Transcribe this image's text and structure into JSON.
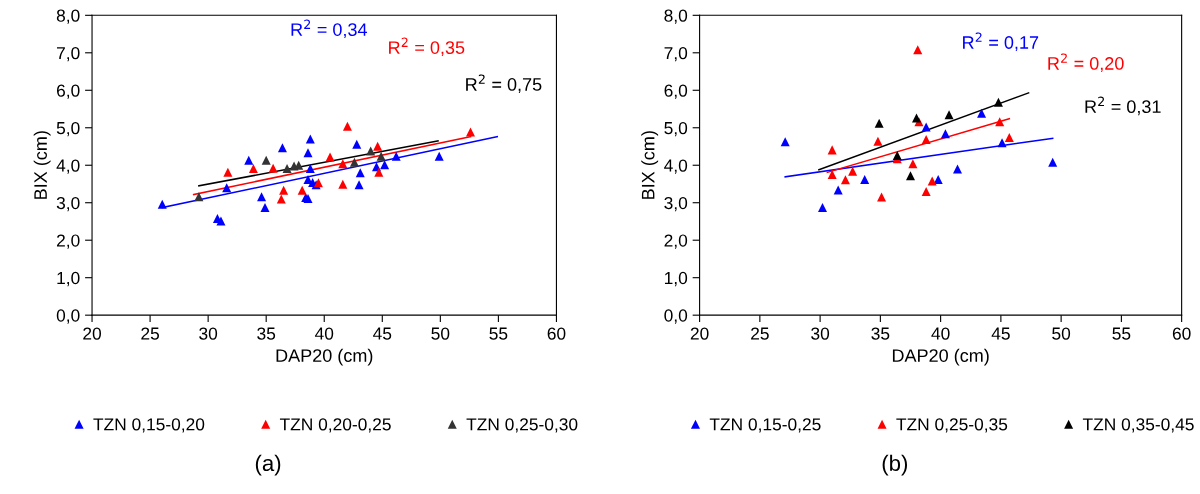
{
  "chart_data": [
    {
      "type": "scatter",
      "xlabel": "DAP20 (cm)",
      "ylabel": "BIX (cm)",
      "xlim": [
        20,
        60
      ],
      "xticks": [
        20,
        25,
        30,
        35,
        40,
        45,
        50,
        55,
        60
      ],
      "ylim": [
        0,
        8
      ],
      "yticks": [
        {
          "value": 0,
          "label": "0,0"
        },
        {
          "value": 1,
          "label": "1,0"
        },
        {
          "value": 2,
          "label": "2,0"
        },
        {
          "value": 3,
          "label": "3,0"
        },
        {
          "value": 4,
          "label": "4,0"
        },
        {
          "value": 5,
          "label": "5,0"
        },
        {
          "value": 6,
          "label": "6,0"
        },
        {
          "value": 7,
          "label": "7,0"
        },
        {
          "value": 8,
          "label": "8,0"
        }
      ],
      "grid": false,
      "legend": "bottom",
      "marker": "triangle",
      "series": [
        {
          "name": "TZN 0,15-0,20",
          "color": "#0000ff",
          "x": [
            26.05,
            30.8,
            31.1,
            31.6,
            33.5,
            34.6,
            34.9,
            36.4,
            38.6,
            38.8,
            38.8,
            38.6,
            38.4,
            38.6,
            39.0,
            39.3,
            42.8,
            43.1,
            43.0,
            44.5,
            45.2,
            46.2,
            49.9
          ],
          "values": [
            2.96,
            2.58,
            2.51,
            3.4,
            4.13,
            3.16,
            2.87,
            4.47,
            4.33,
            4.7,
            3.91,
            3.62,
            3.14,
            3.11,
            3.54,
            3.48,
            4.56,
            3.8,
            3.48,
            3.96,
            4.01,
            4.24,
            4.24
          ]
        },
        {
          "name": "TZN 0,20-0,25",
          "color": "#ff0000",
          "x": [
            31.7,
            33.9,
            35.6,
            36.5,
            36.3,
            38.1,
            39.5,
            40.5,
            41.6,
            41.6,
            42.0,
            44.6,
            44.7,
            52.6
          ],
          "values": [
            3.81,
            3.91,
            3.92,
            3.33,
            3.1,
            3.33,
            3.53,
            4.22,
            4.04,
            3.49,
            5.04,
            4.51,
            3.81,
            4.89
          ]
        },
        {
          "name": "TZN 0,25-0,30",
          "color": "#333333",
          "x": [
            29.2,
            35.0,
            36.8,
            37.4,
            37.8,
            42.6,
            44.0,
            44.9
          ],
          "values": [
            3.16,
            4.13,
            3.91,
            3.98,
            4.0,
            4.08,
            4.38,
            4.24
          ]
        },
        {
          "type": "line",
          "marker": "none",
          "color": "#0000ff",
          "x": [
            26.05,
            54.9
          ],
          "values": [
            2.87,
            4.76
          ]
        },
        {
          "type": "line",
          "marker": "none",
          "color": "#ff0000",
          "x": [
            28.75,
            52.6
          ],
          "values": [
            3.22,
            4.76
          ]
        },
        {
          "type": "line",
          "marker": "none",
          "color": "#000000",
          "x": [
            29.2,
            49.8
          ],
          "values": [
            3.45,
            4.65
          ]
        }
      ],
      "annotations": [
        "R$^{2}$ = 0,34",
        "R$^{2}$ = 0,35",
        "R$^{2}$ = 0,75",
        "(a)"
      ]
    },
    {
      "type": "scatter",
      "xlabel": "DAP20 (cm)",
      "ylabel": "BIX (cm)",
      "xlim": [
        20,
        60
      ],
      "xticks": [
        20,
        25,
        30,
        35,
        40,
        45,
        50,
        55,
        60
      ],
      "ylim": [
        0,
        8
      ],
      "yticks": [
        {
          "value": 0,
          "label": "0,0"
        },
        {
          "value": 1,
          "label": "1,0"
        },
        {
          "value": 2,
          "label": "2,0"
        },
        {
          "value": 3,
          "label": "3,0"
        },
        {
          "value": 4,
          "label": "4,0"
        },
        {
          "value": 5,
          "label": "5,0"
        },
        {
          "value": 6,
          "label": "6,0"
        },
        {
          "value": 7,
          "label": "7,0"
        },
        {
          "value": 8,
          "label": "8,0"
        }
      ],
      "grid": false,
      "legend": "bottom",
      "marker": "triangle",
      "series": [
        {
          "name": "TZN 0,15-0,25",
          "color": "#0000ff",
          "x": [
            27.1,
            30.2,
            31.5,
            33.7,
            38.8,
            40.4,
            39.8,
            41.4,
            43.4,
            45.1,
            49.3
          ],
          "values": [
            4.63,
            2.87,
            3.34,
            3.62,
            5.02,
            4.84,
            3.62,
            3.9,
            5.39,
            4.6,
            4.08
          ]
        },
        {
          "name": "TZN 0,25-0,35",
          "color": "#ff0000",
          "x": [
            38.1,
            31.0,
            31.0,
            32.1,
            32.7,
            34.8,
            35.1,
            36.4,
            37.7,
            38.2,
            38.8,
            38.8,
            39.3,
            44.9,
            45.7
          ],
          "values": [
            7.08,
            4.41,
            3.75,
            3.61,
            3.84,
            4.64,
            3.15,
            4.17,
            4.04,
            5.16,
            4.69,
            3.3,
            3.58,
            5.16,
            4.74
          ]
        },
        {
          "name": "TZN 0,35-0,45",
          "color": "#000000",
          "x": [
            34.9,
            36.4,
            37.5,
            38.0,
            40.7,
            44.8
          ],
          "values": [
            5.12,
            4.26,
            3.72,
            5.26,
            5.35,
            5.68
          ]
        },
        {
          "type": "line",
          "marker": "none",
          "color": "#0000ff",
          "x": [
            27.1,
            49.3
          ],
          "values": [
            3.69,
            4.72
          ]
        },
        {
          "type": "line",
          "marker": "none",
          "color": "#ff0000",
          "x": [
            30.6,
            45.7
          ],
          "values": [
            3.81,
            5.24
          ]
        },
        {
          "type": "line",
          "marker": "none",
          "color": "#000000",
          "x": [
            29.9,
            47.3
          ],
          "values": [
            3.88,
            5.93
          ]
        }
      ],
      "annotations": [
        "R$^{2}$ = 0,17",
        "R$^{2}$ = 0,20",
        "R$^{2}$ = 0,31",
        "(b)"
      ]
    }
  ]
}
